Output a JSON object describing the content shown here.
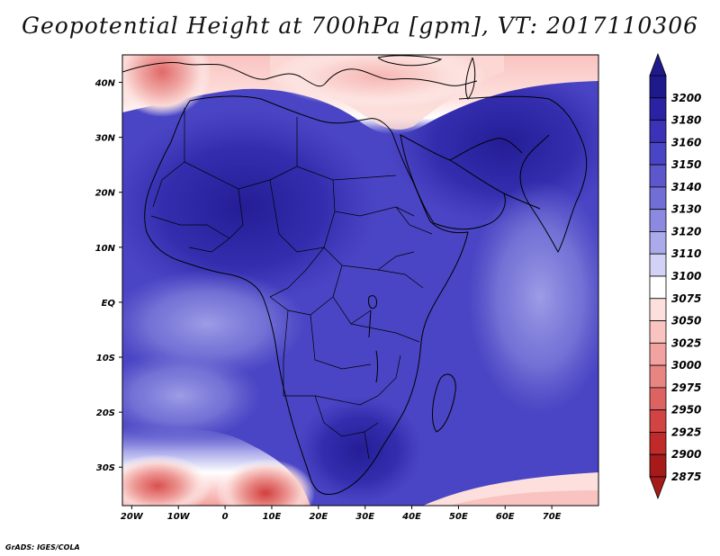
{
  "title": "Geopotential Height at 700hPa [gpm], VT: 2017110306",
  "credit": "GrADS: IGES/COLA",
  "map": {
    "lon_labels": [
      "20W",
      "10W",
      "0",
      "10E",
      "20E",
      "30E",
      "40E",
      "50E",
      "60E",
      "70E"
    ],
    "lat_labels": [
      "40N",
      "30N",
      "20N",
      "10N",
      "EQ",
      "10S",
      "20S",
      "30S"
    ],
    "lon_range": [
      -22,
      80
    ],
    "lat_range": [
      -37,
      45
    ]
  },
  "colorbar": {
    "levels": [
      3200,
      3180,
      3160,
      3150,
      3140,
      3130,
      3120,
      3110,
      3100,
      3075,
      3050,
      3025,
      3000,
      2975,
      2950,
      2925,
      2900,
      2875
    ],
    "colors": [
      "#1f1a8c",
      "#2a22a3",
      "#3a33b8",
      "#4a45c4",
      "#5c58cc",
      "#716fd6",
      "#8b8ae0",
      "#abaaeb",
      "#d2d2f6",
      "#ffffff",
      "#fde0dd",
      "#f9c3c0",
      "#f2a2a0",
      "#e88583",
      "#dd6362",
      "#d24443",
      "#c02a2a",
      "#a71a1a"
    ]
  }
}
